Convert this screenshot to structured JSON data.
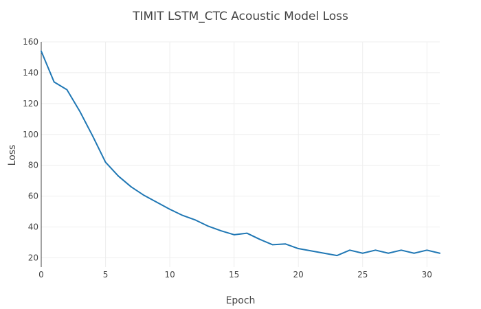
{
  "chart_data": {
    "type": "line",
    "title": "TIMIT LSTM_CTC Acoustic Model Loss",
    "xlabel": "Epoch",
    "ylabel": "Loss",
    "xlim": [
      0,
      31
    ],
    "ylim": [
      14,
      160
    ],
    "x_ticks": [
      0,
      5,
      10,
      15,
      20,
      25,
      30
    ],
    "y_ticks": [
      20,
      40,
      60,
      80,
      100,
      120,
      140,
      160
    ],
    "grid": true,
    "legend": false,
    "series": [
      {
        "color": "#1f77b4",
        "x": [
          0,
          1,
          2,
          3,
          4,
          5,
          6,
          7,
          8,
          9,
          10,
          11,
          12,
          13,
          14,
          15,
          16,
          17,
          18,
          19,
          20,
          21,
          22,
          23,
          24,
          25,
          26,
          27,
          28,
          29,
          30,
          31
        ],
        "y": [
          154,
          134,
          129,
          115,
          99,
          82,
          73,
          66,
          60.5,
          56,
          51.5,
          47.5,
          44.5,
          40.5,
          37.5,
          35,
          36,
          32,
          28.5,
          29,
          26,
          24.5,
          23,
          21.5,
          25,
          23,
          25,
          23,
          25,
          23,
          25,
          23
        ]
      }
    ]
  }
}
